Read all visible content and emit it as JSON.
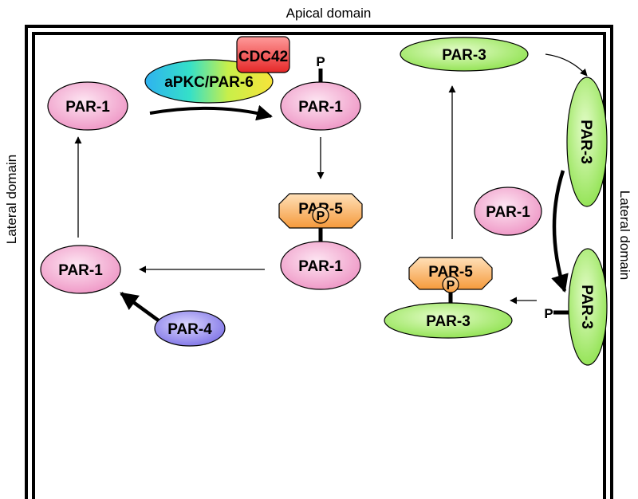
{
  "labels": {
    "apical": "Apical domain",
    "lateral_left": "Lateral domain",
    "lateral_right": "Lateral domain"
  },
  "nodes": {
    "cdc42": "CDC42",
    "apkc_par6": "aPKC/PAR-6",
    "par1_top_left": "PAR-1",
    "par1_top_mid": "PAR-1",
    "par1_mid": "PAR-1",
    "par1_left": "PAR-1",
    "par1_right": "PAR-1",
    "par5_left": "PAR-5",
    "par5_right": "PAR-5",
    "par4": "PAR-4",
    "par3_top": "PAR-3",
    "par3_vert_top": "PAR-3",
    "par3_vert_bottom": "PAR-3",
    "par3_bottom": "PAR-3"
  },
  "phospho": {
    "p_par1_top": "P",
    "p_par5_left": "P",
    "p_par5_right": "P",
    "p_par3_vert": "P"
  },
  "colors": {
    "par1_pink": "#f6b3d6",
    "par3_green": "#a6f06a",
    "par5_orange": "#f7a24a",
    "par4_blue": "#8f86ee",
    "cdc42_red": "#ee3b3b"
  }
}
